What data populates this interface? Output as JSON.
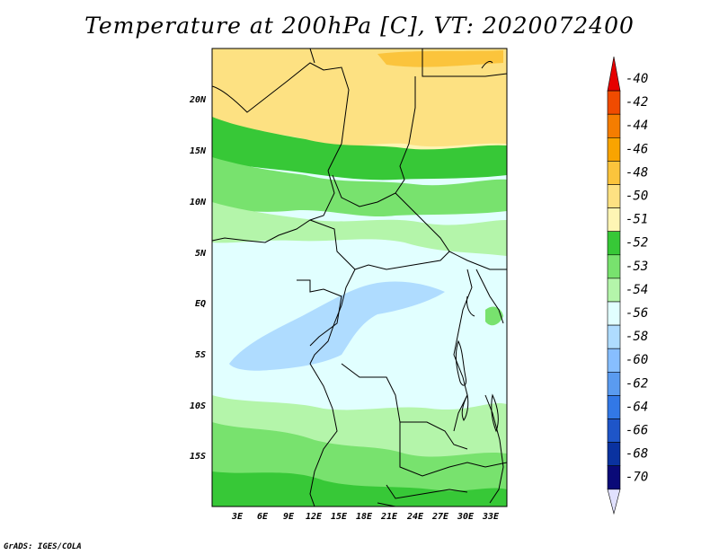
{
  "title": "Temperature at 200hPa [C], VT: 2020072400",
  "credit": "GrADS: IGES/COLA",
  "lat_labels": [
    "20N",
    "15N",
    "10N",
    "5N",
    "EQ",
    "5S",
    "10S",
    "15S"
  ],
  "lon_labels": [
    "3E",
    "6E",
    "9E",
    "12E",
    "15E",
    "18E",
    "21E",
    "24E",
    "27E",
    "30E",
    "33E"
  ],
  "colorbar": {
    "labels": [
      "-40",
      "-42",
      "-44",
      "-46",
      "-48",
      "-50",
      "-51",
      "-52",
      "-53",
      "-54",
      "-56",
      "-58",
      "-60",
      "-62",
      "-64",
      "-66",
      "-68",
      "-70"
    ],
    "colors": [
      "#e60000",
      "#f04b00",
      "#f57d00",
      "#f9a400",
      "#fbc43c",
      "#fde182",
      "#fef5b4",
      "#37c837",
      "#78e26e",
      "#b4f5aa",
      "#e1ffff",
      "#afdcff",
      "#87beff",
      "#5a9bf0",
      "#3278e6",
      "#1e55c8",
      "#0a32a0",
      "#0a0a78",
      "#e1e1ff"
    ]
  },
  "map_colors": {
    "yellow": "#fde182",
    "orange": "#fbc43c",
    "pale_yellow": "#fef5b4",
    "green_dark": "#37c837",
    "green_mid": "#78e26e",
    "green_light": "#b4f5aa",
    "cyan_pale": "#e1ffff",
    "blue_light": "#afdcff"
  }
}
